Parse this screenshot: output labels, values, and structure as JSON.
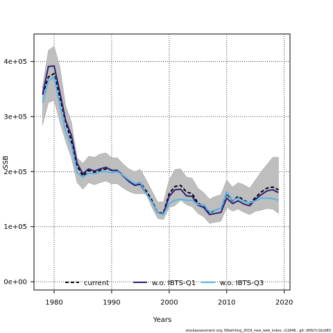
{
  "chart_data": {
    "type": "line",
    "xlabel": "Years",
    "ylabel": "SSB",
    "xlim": [
      1976.5,
      2021
    ],
    "ylim": [
      -15000,
      450000
    ],
    "x_ticks": [
      1980,
      1990,
      2000,
      2010,
      2020
    ],
    "x_tick_labels": [
      "1980",
      "1990",
      "2000",
      "2010",
      "2020"
    ],
    "y_ticks": [
      0,
      100000,
      200000,
      300000,
      400000
    ],
    "y_tick_labels": [
      "0e+00",
      "1e+05",
      "2e+05",
      "3e+05",
      "4e+05"
    ],
    "grid": true,
    "legend_position": "bottom",
    "footer": "stockassessment.org, NSwhiting_2019_new_web_index, r11846 , git: df0b7c1bcb83",
    "x": [
      1978,
      1979,
      1980,
      1981,
      1982,
      1983,
      1984,
      1985,
      1986,
      1987,
      1988,
      1989,
      1990,
      1991,
      1992,
      1993,
      1994,
      1995,
      1996,
      1997,
      1998,
      1999,
      2000,
      2001,
      2002,
      2003,
      2004,
      2005,
      2006,
      2007,
      2008,
      2009,
      2010,
      2011,
      2012,
      2013,
      2014,
      2015,
      2016,
      2017,
      2018,
      2019
    ],
    "band": {
      "color": "#bebebe",
      "upper": [
        355000,
        420000,
        428000,
        390000,
        320000,
        290000,
        225000,
        215000,
        228000,
        226000,
        232000,
        234000,
        225000,
        225000,
        214000,
        205000,
        200000,
        204000,
        185000,
        165000,
        145000,
        145000,
        185000,
        204000,
        205000,
        190000,
        188000,
        170000,
        162000,
        150000,
        155000,
        158000,
        185000,
        172000,
        180000,
        176000,
        170000,
        185000,
        200000,
        213000,
        226000,
        226000
      ],
      "lower": [
        285000,
        325000,
        330000,
        290000,
        255000,
        225000,
        180000,
        168000,
        180000,
        176000,
        180000,
        183000,
        178000,
        178000,
        170000,
        164000,
        160000,
        160000,
        160000,
        135000,
        115000,
        113000,
        135000,
        138000,
        148000,
        140000,
        136000,
        124000,
        118000,
        106000,
        108000,
        110000,
        135000,
        128000,
        132000,
        126000,
        122000,
        128000,
        130000,
        133000,
        132000,
        124000
      ]
    },
    "series": [
      {
        "name": "current",
        "color": "#000000",
        "dashed": true,
        "values": [
          340000,
          372000,
          378000,
          335000,
          290000,
          255000,
          210000,
          192000,
          202000,
          199000,
          202000,
          205000,
          203000,
          202000,
          193000,
          183000,
          178000,
          180000,
          165000,
          148000,
          125000,
          125000,
          160000,
          173000,
          175000,
          163000,
          160000,
          143000,
          137000,
          125000,
          130000,
          133000,
          160000,
          147000,
          155000,
          148000,
          142000,
          153000,
          163000,
          170000,
          172000,
          167000
        ]
      },
      {
        "name": "w.o. IBTS-Q1",
        "color": "#2e1e7a",
        "dashed": false,
        "values": [
          340000,
          391000,
          392000,
          344000,
          293000,
          266000,
          215000,
          196000,
          205000,
          201000,
          205000,
          208000,
          202000,
          202000,
          192000,
          182000,
          175000,
          177000,
          160000,
          145000,
          125000,
          123000,
          155000,
          167000,
          168000,
          156000,
          155000,
          139000,
          135000,
          122000,
          124000,
          126000,
          152000,
          142000,
          147000,
          141000,
          138000,
          150000,
          158000,
          165000,
          167000,
          162000
        ]
      },
      {
        "name": "w.o. IBTS-Q3",
        "color": "#56b4e9",
        "dashed": false,
        "values": [
          325000,
          365000,
          372000,
          320000,
          272000,
          248000,
          198000,
          190000,
          197000,
          196000,
          200000,
          200000,
          198000,
          200000,
          193000,
          185000,
          178000,
          180000,
          160000,
          145000,
          125000,
          122000,
          142000,
          148000,
          150000,
          148000,
          148000,
          140000,
          140000,
          127000,
          130000,
          133000,
          163000,
          148000,
          152000,
          146000,
          143000,
          147000,
          152000,
          152000,
          151000,
          148000
        ]
      }
    ]
  }
}
